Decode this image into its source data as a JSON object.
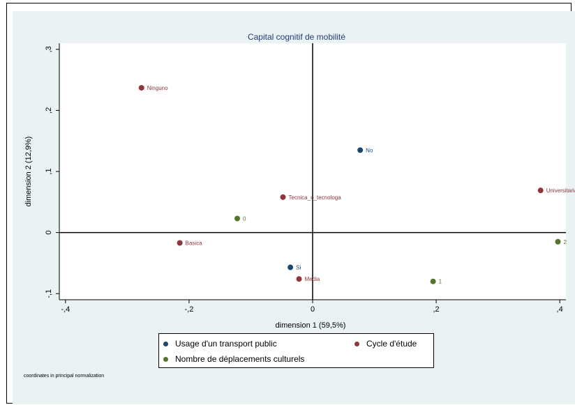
{
  "chart_data": {
    "type": "scatter",
    "title": "Capital cognitif de mobilité",
    "xlabel": "dimension 1 (59,5%)",
    "ylabel": "dimension 2 (12,9%)",
    "xlim": [
      -0.41,
      0.41
    ],
    "ylim": [
      -0.11,
      0.31
    ],
    "x_ticks": [
      {
        "v": -0.4,
        "label": "-,4"
      },
      {
        "v": -0.2,
        "label": "-,2"
      },
      {
        "v": 0,
        "label": "0"
      },
      {
        "v": 0.2,
        "label": ",2"
      },
      {
        "v": 0.4,
        "label": ",4"
      }
    ],
    "y_ticks": [
      {
        "v": -0.1,
        "label": "-,1"
      },
      {
        "v": 0,
        "label": "0"
      },
      {
        "v": 0.1,
        "label": ",1"
      },
      {
        "v": 0.2,
        "label": ",2"
      },
      {
        "v": 0.3,
        "label": ",3"
      }
    ],
    "grid": false,
    "legend_position": "bottom",
    "series": [
      {
        "name": "Usage d'un transport public",
        "color": "#1a476f",
        "points": [
          {
            "label": "No",
            "x": 0.077,
            "y": 0.135
          },
          {
            "label": "Si",
            "x": -0.036,
            "y": -0.057
          }
        ]
      },
      {
        "name": "Cycle d'étude",
        "color": "#90353b",
        "points": [
          {
            "label": "Ninguno",
            "x": -0.277,
            "y": 0.237
          },
          {
            "label": "Universitaria",
            "x": 0.369,
            "y": 0.069
          },
          {
            "label": "Tecnica_o_tecnologa",
            "x": -0.048,
            "y": 0.058
          },
          {
            "label": "Basica",
            "x": -0.215,
            "y": -0.017
          },
          {
            "label": "Media",
            "x": -0.022,
            "y": -0.076
          }
        ]
      },
      {
        "name": "Nombre de déplacements culturels",
        "color": "#55752f",
        "points": [
          {
            "label": "0",
            "x": -0.122,
            "y": 0.023
          },
          {
            "label": "2",
            "x": 0.397,
            "y": -0.015
          },
          {
            "label": "1",
            "x": 0.195,
            "y": -0.08
          }
        ]
      }
    ],
    "note": "coordinates in principal normalization"
  }
}
